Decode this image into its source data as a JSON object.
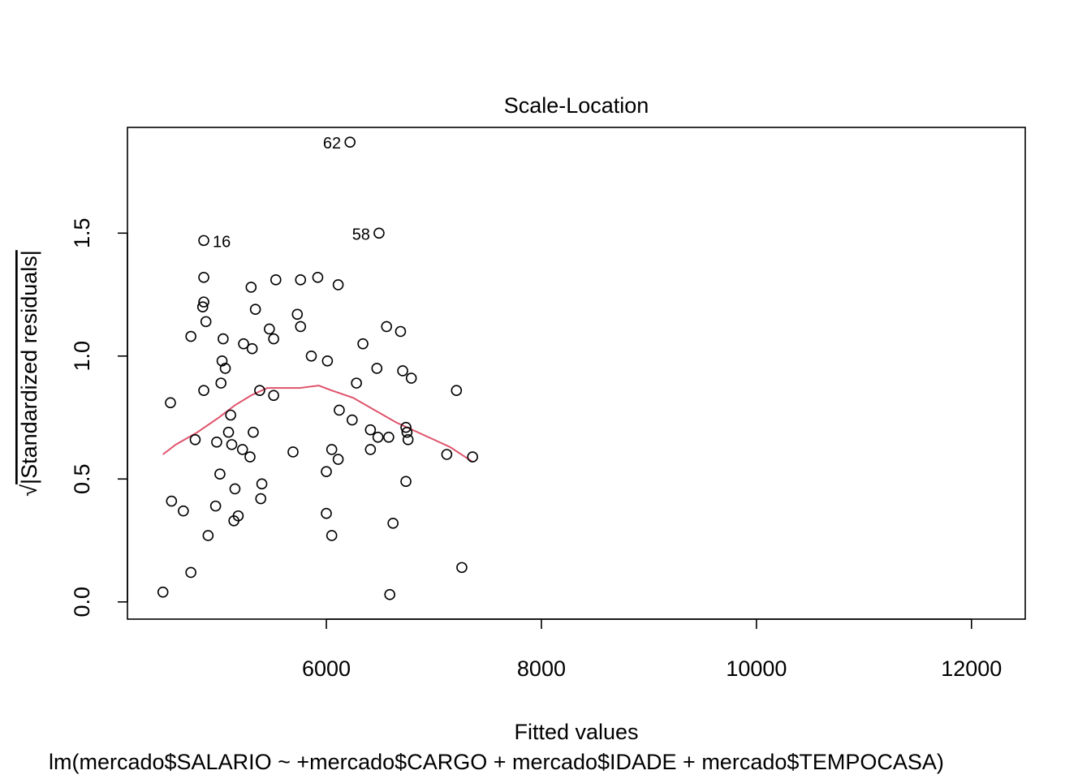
{
  "chart_data": {
    "type": "scatter",
    "title": "Scale-Location",
    "xlabel": "Fitted values",
    "ylabel": "√|Standardized residuals|",
    "ylabel_radical": "√",
    "ylabel_text": "|Standardized residuals|",
    "subtitle": "lm(mercado$SALARIO ~ +mercado$CARGO + mercado$IDADE + mercado$TEMPOCASA)",
    "xlim": [
      4150,
      12500
    ],
    "ylim": [
      -0.07,
      1.93
    ],
    "x_ticks": [
      6000,
      8000,
      10000,
      12000
    ],
    "x_tick_labels": [
      "6000",
      "8000",
      "10000",
      "12000"
    ],
    "y_ticks": [
      0.0,
      0.5,
      1.0,
      1.5
    ],
    "y_tick_labels": [
      "0.0",
      "0.5",
      "1.0",
      "1.5"
    ],
    "grid": false,
    "smooth_color": "#DF536B",
    "points": [
      [
        6220,
        1.87
      ],
      [
        4860,
        1.47
      ],
      [
        6490,
        1.5
      ],
      [
        4860,
        1.32
      ],
      [
        5300,
        1.28
      ],
      [
        5530,
        1.31
      ],
      [
        5760,
        1.31
      ],
      [
        5920,
        1.32
      ],
      [
        6110,
        1.29
      ],
      [
        4860,
        1.22
      ],
      [
        4850,
        1.2
      ],
      [
        5340,
        1.19
      ],
      [
        5730,
        1.17
      ],
      [
        5760,
        1.12
      ],
      [
        5470,
        1.11
      ],
      [
        4880,
        1.14
      ],
      [
        4740,
        1.08
      ],
      [
        5040,
        1.07
      ],
      [
        5510,
        1.07
      ],
      [
        6560,
        1.12
      ],
      [
        6690,
        1.1
      ],
      [
        5230,
        1.05
      ],
      [
        5310,
        1.03
      ],
      [
        6340,
        1.05
      ],
      [
        5860,
        1.0
      ],
      [
        6010,
        0.98
      ],
      [
        5030,
        0.98
      ],
      [
        5060,
        0.95
      ],
      [
        6470,
        0.95
      ],
      [
        6710,
        0.94
      ],
      [
        5020,
        0.89
      ],
      [
        6280,
        0.89
      ],
      [
        6790,
        0.91
      ],
      [
        4550,
        0.81
      ],
      [
        4860,
        0.86
      ],
      [
        5380,
        0.86
      ],
      [
        5510,
        0.84
      ],
      [
        7210,
        0.86
      ],
      [
        5110,
        0.76
      ],
      [
        6120,
        0.78
      ],
      [
        6240,
        0.74
      ],
      [
        5090,
        0.69
      ],
      [
        5320,
        0.69
      ],
      [
        6410,
        0.7
      ],
      [
        6740,
        0.71
      ],
      [
        4780,
        0.66
      ],
      [
        4980,
        0.65
      ],
      [
        5120,
        0.64
      ],
      [
        6480,
        0.67
      ],
      [
        6580,
        0.67
      ],
      [
        6750,
        0.69
      ],
      [
        6760,
        0.66
      ],
      [
        5220,
        0.62
      ],
      [
        5290,
        0.59
      ],
      [
        5690,
        0.61
      ],
      [
        6050,
        0.62
      ],
      [
        6410,
        0.62
      ],
      [
        7120,
        0.6
      ],
      [
        7360,
        0.59
      ],
      [
        6110,
        0.58
      ],
      [
        6000,
        0.53
      ],
      [
        5010,
        0.52
      ],
      [
        5400,
        0.48
      ],
      [
        5150,
        0.46
      ],
      [
        6740,
        0.49
      ],
      [
        5390,
        0.42
      ],
      [
        4560,
        0.41
      ],
      [
        4670,
        0.37
      ],
      [
        4970,
        0.39
      ],
      [
        5180,
        0.35
      ],
      [
        5140,
        0.33
      ],
      [
        6000,
        0.36
      ],
      [
        6620,
        0.32
      ],
      [
        4900,
        0.27
      ],
      [
        6050,
        0.27
      ],
      [
        4740,
        0.12
      ],
      [
        7260,
        0.14
      ],
      [
        4480,
        0.04
      ],
      [
        6590,
        0.03
      ]
    ],
    "labels": [
      {
        "text": "62",
        "x": 6220,
        "y": 1.87
      },
      {
        "text": "16",
        "x": 4860,
        "y": 1.47
      },
      {
        "text": "58",
        "x": 6490,
        "y": 1.5
      }
    ],
    "smooth_line": [
      [
        4480,
        0.6
      ],
      [
        4600,
        0.64
      ],
      [
        4800,
        0.69
      ],
      [
        5000,
        0.75
      ],
      [
        5150,
        0.8
      ],
      [
        5300,
        0.84
      ],
      [
        5450,
        0.87
      ],
      [
        5600,
        0.87
      ],
      [
        5750,
        0.87
      ],
      [
        5930,
        0.88
      ],
      [
        6050,
        0.86
      ],
      [
        6250,
        0.83
      ],
      [
        6450,
        0.78
      ],
      [
        6650,
        0.73
      ],
      [
        6900,
        0.68
      ],
      [
        7150,
        0.63
      ],
      [
        7360,
        0.57
      ]
    ]
  }
}
